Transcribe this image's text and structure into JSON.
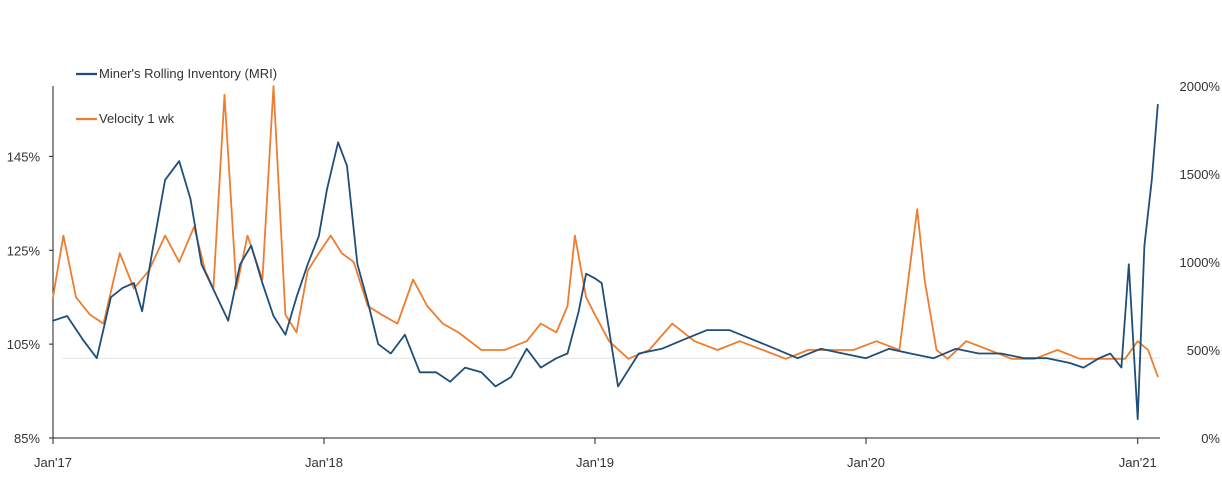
{
  "chart_data": {
    "type": "line",
    "x_ticks": [
      "Jan'17",
      "Jan'18",
      "Jan'19",
      "Jan'20",
      "Jan'21"
    ],
    "x_range": [
      "2017-01-01",
      "2021-01-31"
    ],
    "y_left": {
      "ticks": [
        "85%",
        "105%",
        "125%",
        "145%"
      ],
      "tick_values": [
        85,
        105,
        125,
        145
      ],
      "range": [
        85,
        160
      ]
    },
    "y_right": {
      "ticks": [
        "0%",
        "500%",
        "1000%",
        "1500%",
        "2000%"
      ],
      "tick_values": [
        0,
        500,
        1000,
        1500,
        2000
      ],
      "range": [
        0,
        2000
      ]
    },
    "grid": false,
    "reference_line": {
      "axis": "left",
      "value": 102
    },
    "legend_position": "top-left",
    "series": [
      {
        "name": "Miner's Rolling Inventory (MRI)",
        "axis": "left",
        "color": "#1f4e79",
        "x": [
          "2017-01-01",
          "2017-01-20",
          "2017-02-10",
          "2017-03-01",
          "2017-03-20",
          "2017-04-05",
          "2017-04-20",
          "2017-05-01",
          "2017-05-15",
          "2017-06-01",
          "2017-06-20",
          "2017-07-05",
          "2017-07-20",
          "2017-08-10",
          "2017-08-25",
          "2017-09-10",
          "2017-09-25",
          "2017-10-10",
          "2017-10-25",
          "2017-11-10",
          "2017-11-25",
          "2017-12-10",
          "2017-12-25",
          "2018-01-05",
          "2018-01-20",
          "2018-02-01",
          "2018-02-15",
          "2018-03-01",
          "2018-03-15",
          "2018-04-01",
          "2018-04-20",
          "2018-05-10",
          "2018-06-01",
          "2018-06-20",
          "2018-07-10",
          "2018-08-01",
          "2018-08-20",
          "2018-09-10",
          "2018-10-01",
          "2018-10-20",
          "2018-11-10",
          "2018-11-25",
          "2018-12-10",
          "2018-12-20",
          "2019-01-01",
          "2019-01-10",
          "2019-02-01",
          "2019-03-01",
          "2019-04-01",
          "2019-05-01",
          "2019-06-01",
          "2019-07-01",
          "2019-08-01",
          "2019-09-01",
          "2019-10-01",
          "2019-11-01",
          "2019-12-01",
          "2020-01-01",
          "2020-02-01",
          "2020-03-01",
          "2020-04-01",
          "2020-05-01",
          "2020-06-01",
          "2020-07-01",
          "2020-08-01",
          "2020-09-01",
          "2020-10-01",
          "2020-10-20",
          "2020-11-10",
          "2020-11-25",
          "2020-12-10",
          "2020-12-20",
          "2021-01-01",
          "2021-01-10",
          "2021-01-20",
          "2021-01-28"
        ],
        "values": [
          110,
          111,
          106,
          102,
          115,
          117,
          118,
          112,
          125,
          140,
          144,
          136,
          122,
          115,
          110,
          122,
          126,
          118,
          111,
          107,
          115,
          122,
          128,
          138,
          148,
          143,
          122,
          114,
          105,
          103,
          107,
          99,
          99,
          97,
          100,
          99,
          96,
          98,
          104,
          100,
          102,
          103,
          112,
          120,
          119,
          118,
          96,
          103,
          104,
          106,
          108,
          108,
          106,
          104,
          102,
          104,
          103,
          102,
          104,
          103,
          102,
          104,
          103,
          103,
          102,
          102,
          101,
          100,
          102,
          103,
          100,
          122,
          89,
          126,
          140,
          156
        ]
      },
      {
        "name": "Velocity 1 wk",
        "axis": "right",
        "color": "#ed7d31",
        "x": [
          "2017-01-01",
          "2017-01-15",
          "2017-02-01",
          "2017-02-20",
          "2017-03-10",
          "2017-04-01",
          "2017-04-20",
          "2017-05-10",
          "2017-06-01",
          "2017-06-20",
          "2017-07-10",
          "2017-07-25",
          "2017-08-05",
          "2017-08-20",
          "2017-09-05",
          "2017-09-20",
          "2017-10-10",
          "2017-10-25",
          "2017-11-10",
          "2017-11-25",
          "2017-12-10",
          "2017-12-25",
          "2018-01-10",
          "2018-01-25",
          "2018-02-10",
          "2018-03-01",
          "2018-03-20",
          "2018-04-10",
          "2018-05-01",
          "2018-05-20",
          "2018-06-10",
          "2018-07-01",
          "2018-08-01",
          "2018-09-01",
          "2018-10-01",
          "2018-10-20",
          "2018-11-10",
          "2018-11-25",
          "2018-12-05",
          "2018-12-20",
          "2019-01-01",
          "2019-01-20",
          "2019-02-15",
          "2019-03-15",
          "2019-04-15",
          "2019-05-15",
          "2019-06-15",
          "2019-07-15",
          "2019-08-15",
          "2019-09-15",
          "2019-10-15",
          "2019-11-15",
          "2019-12-15",
          "2020-01-15",
          "2020-02-15",
          "2020-03-10",
          "2020-03-20",
          "2020-04-05",
          "2020-04-20",
          "2020-05-15",
          "2020-06-15",
          "2020-07-15",
          "2020-08-15",
          "2020-09-15",
          "2020-10-15",
          "2020-11-15",
          "2020-12-15",
          "2021-01-01",
          "2021-01-15",
          "2021-01-28"
        ],
        "values": [
          800,
          1150,
          800,
          700,
          650,
          1050,
          850,
          950,
          1150,
          1000,
          1200,
          950,
          850,
          1950,
          850,
          1150,
          900,
          2000,
          700,
          600,
          950,
          1050,
          1150,
          1050,
          1000,
          750,
          700,
          650,
          900,
          750,
          650,
          600,
          500,
          500,
          550,
          650,
          600,
          750,
          1150,
          800,
          700,
          550,
          450,
          500,
          650,
          550,
          500,
          550,
          500,
          450,
          500,
          500,
          500,
          550,
          500,
          1300,
          900,
          500,
          450,
          550,
          500,
          450,
          450,
          500,
          450,
          450,
          450,
          550,
          500,
          350
        ]
      }
    ]
  }
}
